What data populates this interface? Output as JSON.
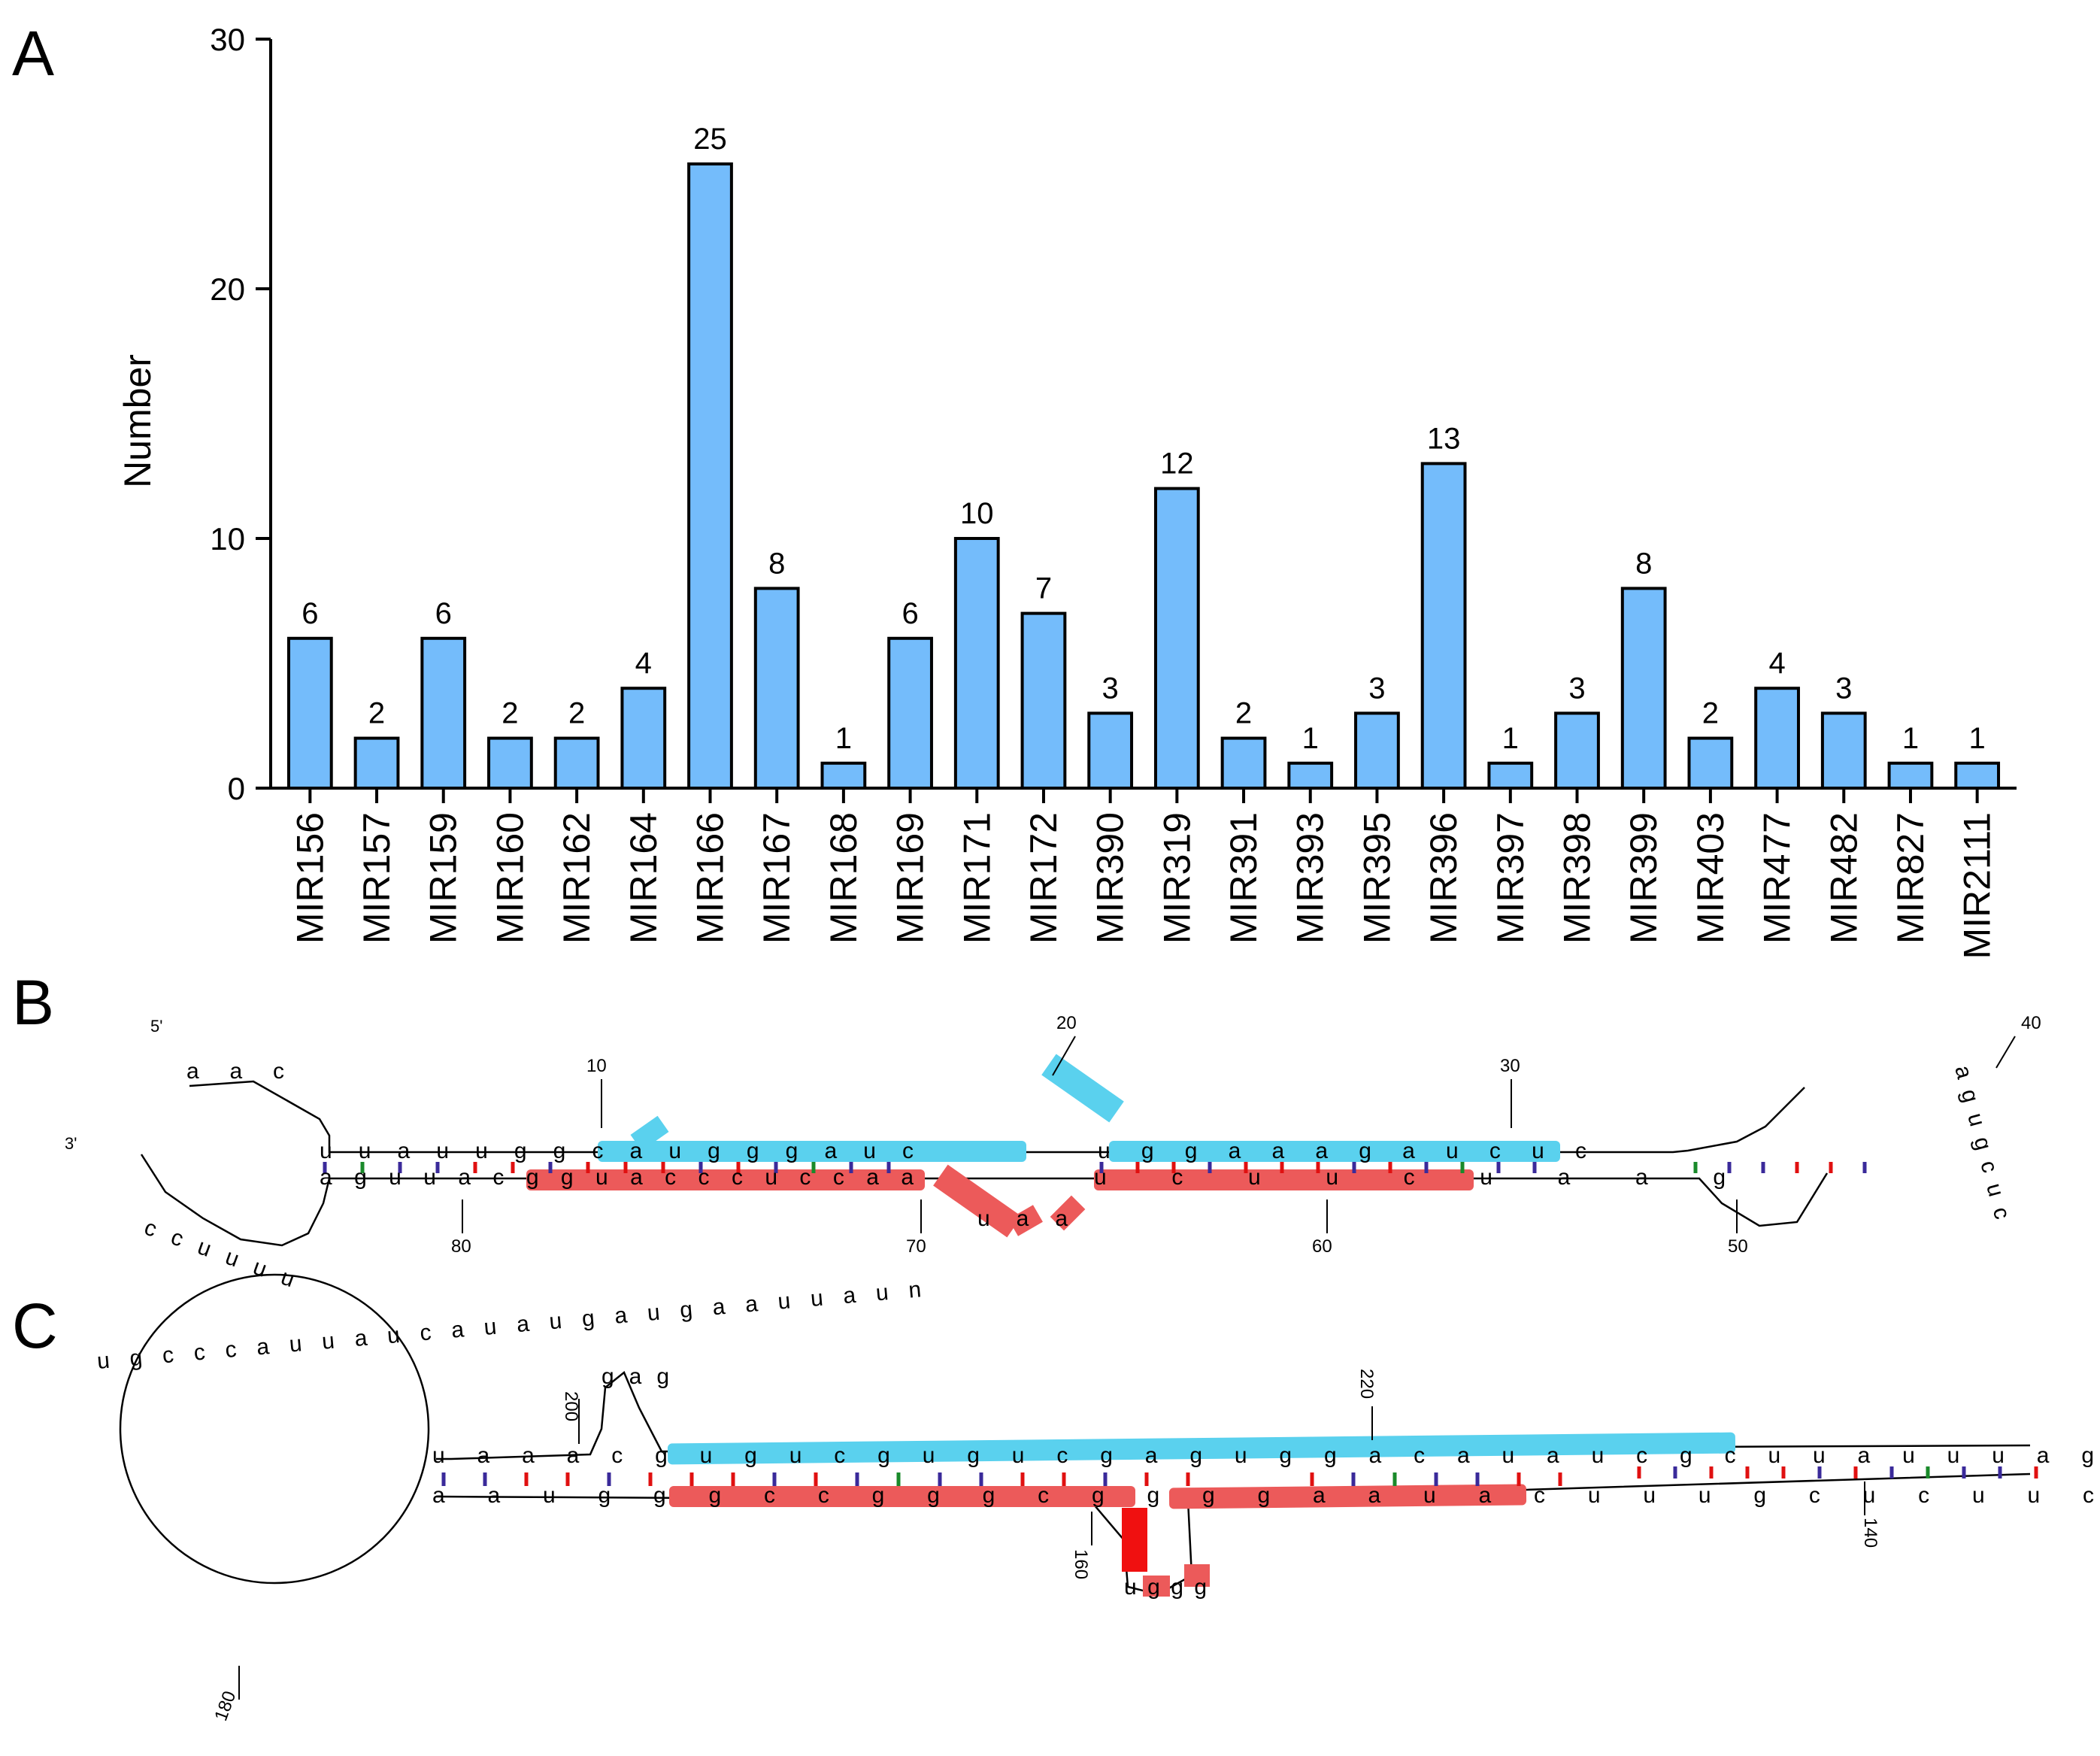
{
  "panels": {
    "a": "A",
    "b": "B",
    "c": "C"
  },
  "chart_data": {
    "type": "bar",
    "title": "",
    "xlabel": "",
    "ylabel": "Number",
    "ylim": [
      0,
      30
    ],
    "yticks": [
      0,
      10,
      20,
      30
    ],
    "bar_color": "#74bcfb",
    "categories": [
      "MIR156",
      "MIR157",
      "MIR159",
      "MIR160",
      "MIR162",
      "MIR164",
      "MIR166",
      "MIR167",
      "MIR168",
      "MIR169",
      "MIR171",
      "MIR172",
      "MIR390",
      "MIR319",
      "MIR391",
      "MIR393",
      "MIR395",
      "MIR396",
      "MIR397",
      "MIR398",
      "MIR399",
      "MIR403",
      "MIR477",
      "MIR482",
      "MIR827",
      "MIR2111"
    ],
    "values": [
      6,
      2,
      6,
      2,
      2,
      4,
      25,
      8,
      1,
      6,
      10,
      7,
      3,
      12,
      2,
      1,
      3,
      13,
      1,
      3,
      8,
      2,
      4,
      3,
      1,
      1
    ]
  },
  "colors": {
    "blue_highlight": "#5ad1ee",
    "red_highlight": "#ec5a5a",
    "red_strong": "#f01010",
    "pair_gc": "#e01010",
    "pair_au": "#3a2a9a",
    "pair_gu": "#1a8a2a"
  },
  "structure_b": {
    "five_prime": "5'",
    "three_prime": "3'",
    "numbers": [
      "10",
      "20",
      "30",
      "40",
      "50",
      "60",
      "70",
      "80"
    ],
    "top_stem": "uuauuggcaugggauc",
    "bottom_stem": "aguuacgguacccuccaa",
    "top_right": "uggaaagaucuc",
    "bottom_right": "ucuucuaag",
    "loop_5p": "aac",
    "loop_3p": "ccuuuu",
    "apical_loop": "agugcuc",
    "bulge": "uaa"
  },
  "structure_c": {
    "numbers": [
      "200",
      "220",
      "160",
      "140",
      "180"
    ],
    "big_loop": "ugcccauuaucauaugaugaauuaun",
    "hairpin": "gag",
    "top_strand": "uaaacgugucgugucgaguggacauaucgcuuauuuag",
    "bottom_strand": "aaugggccgggcggggaauacuuugcucuuc",
    "bulge": "uggg"
  }
}
